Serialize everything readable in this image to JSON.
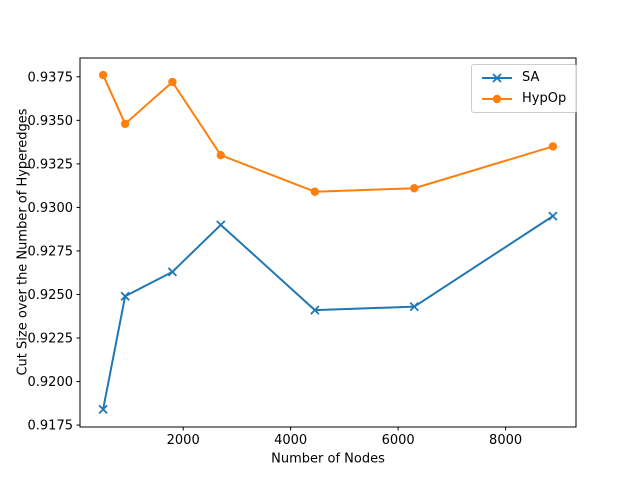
{
  "chart_data": {
    "type": "line",
    "title": "",
    "xlabel": "Number of Nodes",
    "ylabel": "Cut Size over the Number of Hyperedges",
    "x": [
      510,
      920,
      1800,
      2700,
      4450,
      6300,
      8880
    ],
    "series": [
      {
        "name": "SA",
        "color": "#1f77b4",
        "marker": "x",
        "values": [
          0.9184,
          0.9249,
          0.9263,
          0.929,
          0.9241,
          0.9243,
          0.9295
        ]
      },
      {
        "name": "HypOp",
        "color": "#ff7f0e",
        "marker": "circle",
        "values": [
          0.9376,
          0.9348,
          0.9372,
          0.933,
          0.9309,
          0.9311,
          0.9335
        ]
      }
    ],
    "xlim": [
      80,
      9310
    ],
    "ylim": [
      0.91739,
      0.93858
    ],
    "xticks": [
      2000,
      4000,
      6000,
      8000
    ],
    "xtick_labels": [
      "2000",
      "4000",
      "6000",
      "8000"
    ],
    "yticks": [
      0.9175,
      0.92,
      0.9225,
      0.925,
      0.9275,
      0.93,
      0.9325,
      0.935,
      0.9375
    ],
    "ytick_labels": [
      "0.9175",
      "0.9200",
      "0.9225",
      "0.9250",
      "0.9275",
      "0.9300",
      "0.9325",
      "0.9350",
      "0.9375"
    ],
    "grid": false,
    "legend": {
      "position": "upper right",
      "entries": [
        "SA",
        "HypOp"
      ]
    },
    "frame_color": "#000000",
    "background_color": "#ffffff"
  }
}
